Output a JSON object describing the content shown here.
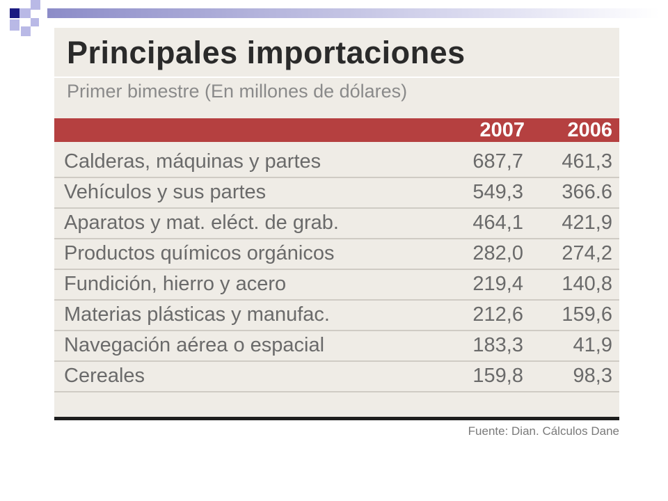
{
  "chart_data": {
    "type": "table",
    "title": "Principales importaciones",
    "subtitle": "Primer bimestre (En millones de dólares)",
    "columns": [
      "2007",
      "2006"
    ],
    "rows": [
      {
        "label": "Calderas, máquinas y partes",
        "v2007": "687,7",
        "v2006": "461,3"
      },
      {
        "label": "Vehículos y sus partes",
        "v2007": "549,3",
        "v2006": "366.6"
      },
      {
        "label": "Aparatos y mat. eléct. de grab.",
        "v2007": "464,1",
        "v2006": "421,9"
      },
      {
        "label": "Productos químicos orgánicos",
        "v2007": "282,0",
        "v2006": "274,2"
      },
      {
        "label": "Fundición, hierro y acero",
        "v2007": "219,4",
        "v2006": "140,8"
      },
      {
        "label": "Materias plásticas y manufac.",
        "v2007": "212,6",
        "v2006": "159,6"
      },
      {
        "label": "Navegación aérea o espacial",
        "v2007": "183,3",
        "v2006": "41,9"
      },
      {
        "label": "Cereales",
        "v2007": "159,8",
        "v2006": "98,3"
      }
    ],
    "source": "Fuente: Dian. Cálculos Dane"
  },
  "colors": {
    "header_band": "#b54040",
    "panel_background": "#efece6",
    "slide_accent": "#1c1c82"
  }
}
